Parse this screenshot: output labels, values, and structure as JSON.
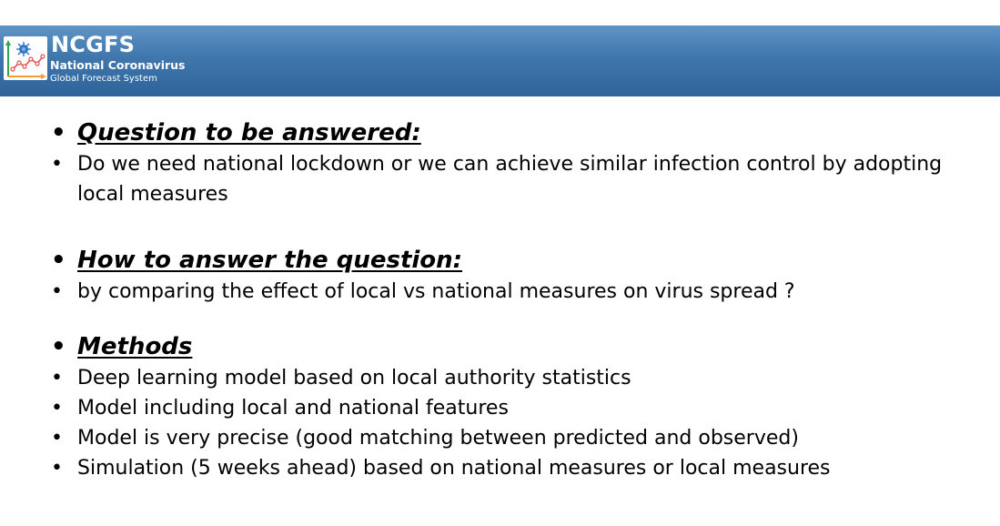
{
  "header": {
    "brand_title": "NCGFS",
    "brand_line1": "National Coronavirus",
    "brand_line2": "Global Forecast System",
    "logo_icon": "virus-chart-logo-icon"
  },
  "sections": [
    {
      "heading": "Question to be answered:",
      "items": [
        "Do we need national lockdown or we can achieve similar infection control by adopting local measures"
      ]
    },
    {
      "heading": "How to answer the question:",
      "items": [
        "by comparing the effect of local vs national measures on virus spread ?"
      ]
    },
    {
      "heading": "Methods",
      "items": [
        "Deep learning model based on local authority statistics",
        "Model including local and national features",
        "Model is very precise (good matching between predicted and observed)",
        "Simulation (5 weeks ahead) based on national measures or local measures"
      ]
    }
  ]
}
